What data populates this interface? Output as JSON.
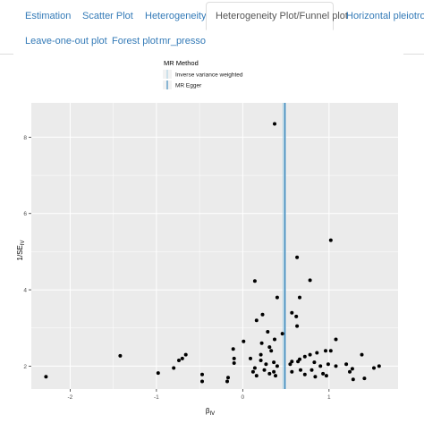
{
  "tabs": [
    {
      "label": "Estimation",
      "active": false
    },
    {
      "label": "Scatter Plot",
      "active": false
    },
    {
      "label": "Heterogeneity",
      "active": false
    },
    {
      "label": "Heterogeneity Plot/Funnel plot",
      "active": true
    },
    {
      "label": "Horizontal pleiotropy",
      "active": false
    },
    {
      "label": "Leave-one-out plot",
      "active": false
    },
    {
      "label": "Forest plot",
      "active": false
    },
    {
      "label": "mr_presso",
      "active": false
    }
  ],
  "colors": {
    "link": "#337ab7",
    "panel_bg": "#ebebeb",
    "ivw_line": "#a6cee3",
    "egger_line": "#1f78b4",
    "point": "#000000"
  },
  "chart_data": {
    "type": "scatter",
    "title": "",
    "xlabel": "β",
    "xlabel_sub": "IV",
    "ylabel": "1/SE",
    "ylabel_sub": "IV",
    "xlim": [
      -2.45,
      1.8
    ],
    "ylim": [
      1.4,
      8.9
    ],
    "x_ticks": [
      -2,
      -1,
      0,
      1
    ],
    "x_tick_labels": [
      "-2",
      "-1",
      "0",
      "1"
    ],
    "y_ticks": [
      2,
      4,
      6,
      8
    ],
    "y_tick_labels": [
      "2",
      "4",
      "6",
      "8"
    ],
    "grid": true,
    "legend": {
      "title": "MR Method",
      "placement": "top",
      "entries": [
        "Inverse variance weighted",
        "MR Egger"
      ]
    },
    "vlines": [
      {
        "name": "Inverse variance weighted",
        "x": 0.47
      },
      {
        "name": "MR Egger",
        "x": 0.49
      }
    ],
    "points": [
      {
        "x": 0.37,
        "y": 8.35
      },
      {
        "x": 1.02,
        "y": 5.3
      },
      {
        "x": 0.63,
        "y": 4.85
      },
      {
        "x": 0.78,
        "y": 4.25
      },
      {
        "x": 0.14,
        "y": 4.23
      },
      {
        "x": 0.4,
        "y": 3.8
      },
      {
        "x": 0.66,
        "y": 3.8
      },
      {
        "x": 0.57,
        "y": 3.4
      },
      {
        "x": 0.23,
        "y": 3.35
      },
      {
        "x": 0.62,
        "y": 3.3
      },
      {
        "x": 0.16,
        "y": 3.2
      },
      {
        "x": 0.63,
        "y": 3.05
      },
      {
        "x": 0.29,
        "y": 2.9
      },
      {
        "x": 0.46,
        "y": 2.85
      },
      {
        "x": 0.22,
        "y": 2.6
      },
      {
        "x": 0.37,
        "y": 2.7
      },
      {
        "x": 1.08,
        "y": 2.7
      },
      {
        "x": 0.01,
        "y": 2.65
      },
      {
        "x": -0.11,
        "y": 2.45
      },
      {
        "x": 0.31,
        "y": 2.5
      },
      {
        "x": 0.33,
        "y": 2.4
      },
      {
        "x": 0.21,
        "y": 2.3
      },
      {
        "x": 0.96,
        "y": 2.4
      },
      {
        "x": 1.02,
        "y": 2.4
      },
      {
        "x": 0.86,
        "y": 2.35
      },
      {
        "x": 0.78,
        "y": 2.3
      },
      {
        "x": 0.72,
        "y": 2.25
      },
      {
        "x": 0.66,
        "y": 2.18
      },
      {
        "x": 0.64,
        "y": 2.12
      },
      {
        "x": -1.42,
        "y": 2.27
      },
      {
        "x": -0.66,
        "y": 2.3
      },
      {
        "x": -0.7,
        "y": 2.2
      },
      {
        "x": -0.1,
        "y": 2.2
      },
      {
        "x": 0.09,
        "y": 2.2
      },
      {
        "x": -0.1,
        "y": 2.08
      },
      {
        "x": 0.21,
        "y": 2.15
      },
      {
        "x": 0.27,
        "y": 2.05
      },
      {
        "x": 0.36,
        "y": 2.1
      },
      {
        "x": 0.4,
        "y": 2.0
      },
      {
        "x": 0.55,
        "y": 2.05
      },
      {
        "x": 0.57,
        "y": 2.12
      },
      {
        "x": 0.83,
        "y": 2.1
      },
      {
        "x": 0.9,
        "y": 2.0
      },
      {
        "x": 0.99,
        "y": 2.05
      },
      {
        "x": 1.08,
        "y": 2.0
      },
      {
        "x": 1.2,
        "y": 2.05
      },
      {
        "x": 1.38,
        "y": 2.3
      },
      {
        "x": 1.52,
        "y": 1.95
      },
      {
        "x": 1.58,
        "y": 2.0
      },
      {
        "x": 1.27,
        "y": 1.93
      },
      {
        "x": -0.8,
        "y": 1.95
      },
      {
        "x": -0.98,
        "y": 1.82
      },
      {
        "x": -0.74,
        "y": 2.15
      },
      {
        "x": 0.14,
        "y": 1.95
      },
      {
        "x": 0.12,
        "y": 1.85
      },
      {
        "x": 0.16,
        "y": 1.75
      },
      {
        "x": 0.25,
        "y": 1.9
      },
      {
        "x": 0.31,
        "y": 1.8
      },
      {
        "x": 0.36,
        "y": 1.85
      },
      {
        "x": 0.38,
        "y": 1.75
      },
      {
        "x": 0.57,
        "y": 1.85
      },
      {
        "x": 0.67,
        "y": 1.9
      },
      {
        "x": 0.72,
        "y": 1.78
      },
      {
        "x": 0.8,
        "y": 1.9
      },
      {
        "x": 0.84,
        "y": 1.72
      },
      {
        "x": 0.93,
        "y": 1.8
      },
      {
        "x": 1.24,
        "y": 1.85
      },
      {
        "x": 1.28,
        "y": 1.65
      },
      {
        "x": 1.41,
        "y": 1.68
      },
      {
        "x": 0.97,
        "y": 1.75
      },
      {
        "x": -0.47,
        "y": 1.78
      },
      {
        "x": -0.47,
        "y": 1.6
      },
      {
        "x": -0.17,
        "y": 1.7
      },
      {
        "x": -0.18,
        "y": 1.6
      },
      {
        "x": -2.28,
        "y": 1.72
      }
    ]
  }
}
